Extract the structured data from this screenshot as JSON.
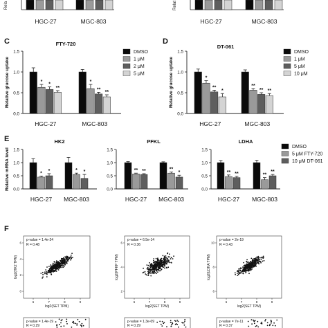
{
  "colors": {
    "dmso": "#0a0a0a",
    "treat1": "#9a9a9a",
    "treat2": "#5e5e5e",
    "treat3": "#d4d4d4",
    "axis": "#222222",
    "scatter_point": "#111111"
  },
  "top_strip": {
    "ylabel": "Rela",
    "categories": [
      "HGC-27",
      "MGC-803"
    ],
    "right_ylabel": "Relat"
  },
  "panels": {
    "C": {
      "letter": "C"
    },
    "D": {
      "letter": "D"
    },
    "E": {
      "letter": "E"
    },
    "F": {
      "letter": "F"
    }
  },
  "chart_data": [
    {
      "id": "C",
      "type": "bar",
      "title": "FTY-720",
      "ylabel": "Relative glucose uptake",
      "categories": [
        "HGC-27",
        "MGC-803"
      ],
      "ylim": [
        0,
        1.5
      ],
      "yticks": [
        "0.0",
        "0.5",
        "1.0",
        "1.5"
      ],
      "series": [
        {
          "name": "DMSO",
          "color": "#0a0a0a",
          "values": [
            1.0,
            1.0
          ],
          "errors": [
            0.1,
            0.06
          ],
          "sig": [
            "",
            ""
          ]
        },
        {
          "name": "1 μM",
          "color": "#9a9a9a",
          "values": [
            0.63,
            0.6
          ],
          "errors": [
            0.07,
            0.1
          ],
          "sig": [
            "*",
            "*"
          ]
        },
        {
          "name": "2 μM",
          "color": "#5e5e5e",
          "values": [
            0.58,
            0.47
          ],
          "errors": [
            0.06,
            0.04
          ],
          "sig": [
            "*",
            "**"
          ]
        },
        {
          "name": "5 μM",
          "color": "#d4d4d4",
          "values": [
            0.51,
            0.4
          ],
          "errors": [
            0.04,
            0.05
          ],
          "sig": [
            "**",
            "**"
          ]
        }
      ]
    },
    {
      "id": "D",
      "type": "bar",
      "title": "DT-061",
      "ylabel": "Relative glucose uptake",
      "categories": [
        "HGC-27",
        "MGC-803"
      ],
      "ylim": [
        0,
        1.5
      ],
      "yticks": [
        "0.0",
        "0.5",
        "1.0",
        "1.5"
      ],
      "series": [
        {
          "name": "DMSO",
          "color": "#0a0a0a",
          "values": [
            1.0,
            1.0
          ],
          "errors": [
            0.07,
            0.05
          ],
          "sig": [
            "",
            ""
          ]
        },
        {
          "name": "1 μM",
          "color": "#9a9a9a",
          "values": [
            0.73,
            0.56
          ],
          "errors": [
            0.06,
            0.04
          ],
          "sig": [
            "*",
            "**"
          ]
        },
        {
          "name": "5 μM",
          "color": "#5e5e5e",
          "values": [
            0.52,
            0.46
          ],
          "errors": [
            0.04,
            0.04
          ],
          "sig": [
            "**",
            "**"
          ]
        },
        {
          "name": "10 μM",
          "color": "#d4d4d4",
          "values": [
            0.4,
            0.43
          ],
          "errors": [
            0.08,
            0.05
          ],
          "sig": [
            "*",
            "**"
          ]
        }
      ]
    },
    {
      "id": "E-HK2",
      "type": "bar",
      "title": "HK2",
      "ylabel": "Relative mRNA level",
      "categories": [
        "HGC-27",
        "MGC-803"
      ],
      "ylim": [
        0,
        1.5
      ],
      "yticks": [
        "0.0",
        "0.5",
        "1.0",
        "1.5"
      ],
      "series": [
        {
          "name": "DMSO",
          "color": "#0a0a0a",
          "values": [
            1.0,
            1.0
          ],
          "errors": [
            0.15,
            0.2
          ],
          "sig": [
            "",
            ""
          ]
        },
        {
          "name": "5 μM FTY-720",
          "color": "#9a9a9a",
          "values": [
            0.45,
            0.55
          ],
          "errors": [
            0.04,
            0.05
          ],
          "sig": [
            "*",
            "*"
          ]
        },
        {
          "name": "10 μM DT-061",
          "color": "#5e5e5e",
          "values": [
            0.5,
            0.4
          ],
          "errors": [
            0.08,
            0.15
          ],
          "sig": [
            "*",
            "*"
          ]
        }
      ]
    },
    {
      "id": "E-PFKL",
      "type": "bar",
      "title": "PFKL",
      "ylabel": "",
      "categories": [
        "HGC-27",
        "MGC-803"
      ],
      "ylim": [
        0,
        1.5
      ],
      "yticks": [
        "0.0",
        "0.5",
        "1.0",
        "1.5"
      ],
      "series": [
        {
          "name": "DMSO",
          "color": "#0a0a0a",
          "values": [
            1.0,
            1.0
          ],
          "errors": [
            0.04,
            0.03
          ],
          "sig": [
            "",
            ""
          ]
        },
        {
          "name": "5 μM FTY-720",
          "color": "#9a9a9a",
          "values": [
            0.57,
            0.6
          ],
          "errors": [
            0.03,
            0.04
          ],
          "sig": [
            "**",
            "**"
          ]
        },
        {
          "name": "10 μM DT-061",
          "color": "#5e5e5e",
          "values": [
            0.55,
            0.45
          ],
          "errors": [
            0.03,
            0.07
          ],
          "sig": [
            "**",
            "*"
          ]
        }
      ]
    },
    {
      "id": "E-LDHA",
      "type": "bar",
      "title": "LDHA",
      "ylabel": "",
      "categories": [
        "HGC-27",
        "MGC-803"
      ],
      "ylim": [
        0,
        1.5
      ],
      "yticks": [
        "0.0",
        "0.5",
        "1.0",
        "1.5"
      ],
      "series": [
        {
          "name": "DMSO",
          "color": "#0a0a0a",
          "values": [
            1.0,
            1.0
          ],
          "errors": [
            0.08,
            0.09
          ],
          "sig": [
            "",
            ""
          ]
        },
        {
          "name": "5 μM FTY-720",
          "color": "#9a9a9a",
          "values": [
            0.47,
            0.35
          ],
          "errors": [
            0.06,
            0.08
          ],
          "sig": [
            "**",
            "**"
          ]
        },
        {
          "name": "10 μM DT-061",
          "color": "#5e5e5e",
          "values": [
            0.43,
            0.5
          ],
          "errors": [
            0.05,
            0.05
          ],
          "sig": [
            "**",
            "**"
          ]
        }
      ]
    },
    {
      "id": "F-HK2",
      "type": "scatter",
      "stat_p": "p-value = 1.4e-24",
      "stat_r": "R = 0.48",
      "xlabel": "log2(SET TPM)",
      "ylabel": "log2(HK2 TPM)",
      "xticks": [
        "6",
        "7",
        "8",
        "9"
      ],
      "yticks": [
        "0",
        "2",
        "4",
        "6"
      ],
      "point_count": 360
    },
    {
      "id": "F-PFKP",
      "type": "scatter",
      "stat_p": "p-value = 6.5e-14",
      "stat_r": "R = 0.36",
      "xlabel": "log2(SET TPM)",
      "ylabel": "log2(PFKP TPM)",
      "xticks": [
        "6",
        "7",
        "8",
        "9"
      ],
      "yticks": [
        "2",
        "4",
        "6"
      ],
      "point_count": 360
    },
    {
      "id": "F-LDHA",
      "type": "scatter",
      "stat_p": "p-value = 2e-19",
      "stat_r": "R = 0.43",
      "xlabel": "log2(SET TPM)",
      "ylabel": "log2(LDHA TPM)",
      "xticks": [
        "6",
        "7",
        "8",
        "9"
      ],
      "yticks": [
        "6",
        "8",
        "10"
      ],
      "point_count": 360
    }
  ],
  "bottom_strip": [
    {
      "stat_p": "p-value = 1.4e-19",
      "stat_r": "R = 0.29"
    },
    {
      "stat_p": "p-value = 1.3e-09",
      "stat_r": "R = 0.29"
    },
    {
      "stat_p": "p-value = 7e-11",
      "stat_r": "R = 0.37"
    }
  ]
}
